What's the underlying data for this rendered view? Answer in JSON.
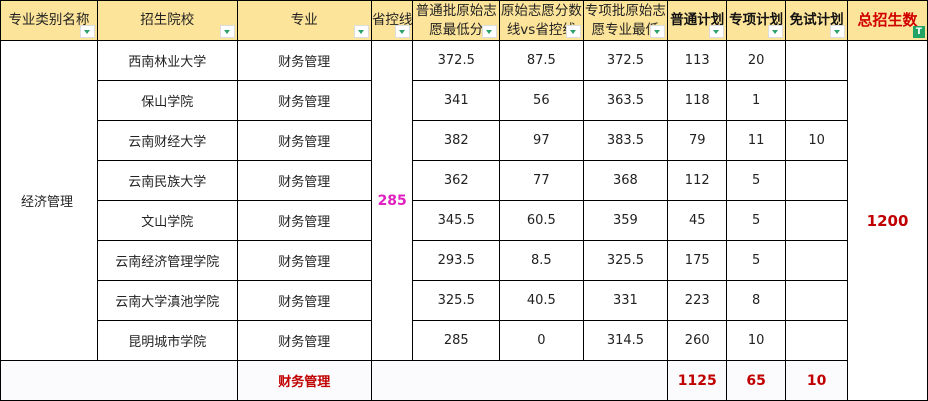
{
  "headers": [
    "专业类别名称",
    "招生院校",
    "专业",
    "省控线",
    "普通批原始志愿最低分",
    "原始志愿分数线vs省控线",
    "专项批原始志愿专业最低",
    "普通计划",
    "专项计划",
    "免试计划",
    "总招生数"
  ],
  "category": "经济管理",
  "control_line": "285",
  "total_enrollment": "1200",
  "rows": [
    {
      "school": "西南林业大学",
      "major": "财务管理",
      "ordinary_min": "372.5",
      "diff": "87.5",
      "special_min": "372.5",
      "ordinary_plan": "113",
      "special_plan": "20",
      "exempt_plan": ""
    },
    {
      "school": "保山学院",
      "major": "财务管理",
      "ordinary_min": "341",
      "diff": "56",
      "special_min": "363.5",
      "ordinary_plan": "118",
      "special_plan": "1",
      "exempt_plan": ""
    },
    {
      "school": "云南财经大学",
      "major": "财务管理",
      "ordinary_min": "382",
      "diff": "97",
      "special_min": "383.5",
      "ordinary_plan": "79",
      "special_plan": "11",
      "exempt_plan": "10"
    },
    {
      "school": "云南民族大学",
      "major": "财务管理",
      "ordinary_min": "362",
      "diff": "77",
      "special_min": "368",
      "ordinary_plan": "112",
      "special_plan": "5",
      "exempt_plan": ""
    },
    {
      "school": "文山学院",
      "major": "财务管理",
      "ordinary_min": "345.5",
      "diff": "60.5",
      "special_min": "359",
      "ordinary_plan": "45",
      "special_plan": "5",
      "exempt_plan": ""
    },
    {
      "school": "云南经济管理学院",
      "major": "财务管理",
      "ordinary_min": "293.5",
      "diff": "8.5",
      "special_min": "325.5",
      "ordinary_plan": "175",
      "special_plan": "5",
      "exempt_plan": ""
    },
    {
      "school": "云南大学滇池学院",
      "major": "财务管理",
      "ordinary_min": "325.5",
      "diff": "40.5",
      "special_min": "331",
      "ordinary_plan": "223",
      "special_plan": "8",
      "exempt_plan": ""
    },
    {
      "school": "昆明城市学院",
      "major": "财务管理",
      "ordinary_min": "285",
      "diff": "0",
      "special_min": "314.5",
      "ordinary_plan": "260",
      "special_plan": "10",
      "exempt_plan": ""
    }
  ],
  "totals": {
    "major": "财务管理",
    "ordinary_plan": "1125",
    "special_plan": "65",
    "exempt_plan": "10"
  }
}
